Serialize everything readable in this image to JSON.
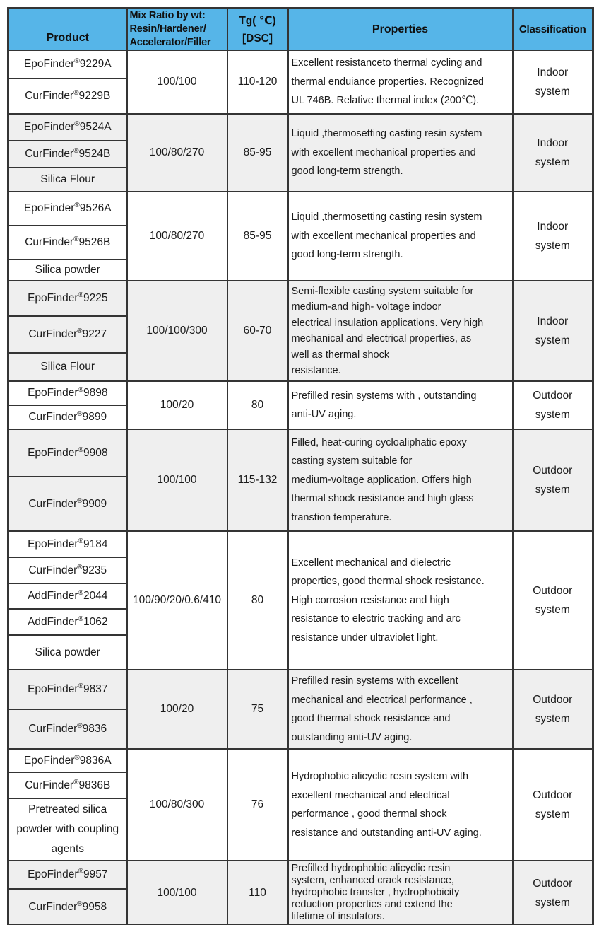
{
  "header": {
    "product": "Product",
    "mix_ratio": "Mix Ratio by wt:\nResin/Hardener/\nAccelerator/Filler",
    "tg": "Tg( ℃)\n[DSC]",
    "properties": "Properties",
    "classification": "Classification"
  },
  "colors": {
    "header_bg": "#56b5e8",
    "alt_row_bg": "#efefef",
    "border": "#343434",
    "text": "#1b1b1b"
  },
  "groups": [
    {
      "products": [
        "EpoFinder®9229A",
        "CurFinder®9229B"
      ],
      "mix_ratio": "100/100",
      "tg": "110-120",
      "properties": "Excellent resistanceto thermal cycling and\nthermal enduiance properties. Recognized\nUL 746B. Relative thermal index (200℃).",
      "classification": "Indoor system"
    },
    {
      "products": [
        "EpoFinder®9524A",
        "CurFinder®9524B",
        "Silica Flour"
      ],
      "mix_ratio": "100/80/270",
      "tg": "85-95",
      "properties": "Liquid ,thermosetting casting resin system\nwith excellent mechanical properties and\ngood long-term strength.",
      "classification": "Indoor system"
    },
    {
      "products": [
        "EpoFinder®9526A",
        "CurFinder®9526B",
        "Silica powder"
      ],
      "mix_ratio": "100/80/270",
      "tg": "85-95",
      "properties": "Liquid ,thermosetting casting resin system\nwith excellent mechanical properties and\ngood long-term strength.",
      "classification": "Indoor system"
    },
    {
      "products": [
        "EpoFinder®9225",
        "CurFinder®9227",
        "Silica Flour"
      ],
      "mix_ratio": "100/100/300",
      "tg": "60-70",
      "properties": "Semi-flexible casting system suitable for\nmedium-and high- voltage indoor\nelectrical insulation applications. Very high\nmechanical and electrical properties, as\nwell as thermal shock\nresistance.",
      "classification": "Indoor system"
    },
    {
      "products": [
        "EpoFinder®9898",
        "CurFinder®9899"
      ],
      "mix_ratio": "100/20",
      "tg": "80",
      "properties": "Prefilled resin systems with , outstanding\nanti-UV aging.",
      "classification": "Outdoor system"
    },
    {
      "products": [
        "EpoFinder®9908",
        "CurFinder®9909"
      ],
      "mix_ratio": "100/100",
      "tg": "115-132",
      "properties": "Filled, heat-curing cycloaliphatic epoxy\ncasting system suitable for\nmedium-voltage application. Offers high\nthermal shock resistance and high glass\ntranstion temperature.",
      "classification": "Outdoor system"
    },
    {
      "products": [
        "EpoFinder®9184",
        "CurFinder®9235",
        "AddFinder®2044",
        "AddFinder®1062",
        "Silica powder"
      ],
      "mix_ratio": "100/90/20/0.6/410",
      "tg": "80",
      "properties": "Excellent mechanical and dielectric\nproperties, good thermal shock resistance.\nHigh corrosion resistance and high\nresistance to electric tracking and arc\nresistance under ultraviolet light.",
      "classification": "Outdoor system"
    },
    {
      "products": [
        "EpoFinder®9837",
        "CurFinder®9836"
      ],
      "mix_ratio": "100/20",
      "tg": "75",
      "properties": "Prefilled resin systems with excellent\nmechanical and electrical performance ,\ngood thermal shock resistance and\noutstanding anti-UV aging.",
      "classification": "Outdoor system"
    },
    {
      "products": [
        "EpoFinder®9836A",
        "CurFinder®9836B",
        "Pretreated silica powder with coupling agents"
      ],
      "mix_ratio": "100/80/300",
      "tg": "76",
      "properties": "Hydrophobic alicyclic resin system with\nexcellent mechanical and electrical\nperformance , good thermal shock\nresistance and outstanding anti-UV aging.",
      "classification": "Outdoor system"
    },
    {
      "products": [
        "EpoFinder®9957",
        "CurFinder®9958"
      ],
      "mix_ratio": "100/100",
      "tg": "110",
      "properties": "Prefilled hydrophobic alicyclic resin\nsystem, enhanced crack resistance,\nhydrophobic transfer , hydrophobicity\nreduction properties and extend the\nlifetime of insulators.",
      "classification": "Outdoor system"
    }
  ]
}
